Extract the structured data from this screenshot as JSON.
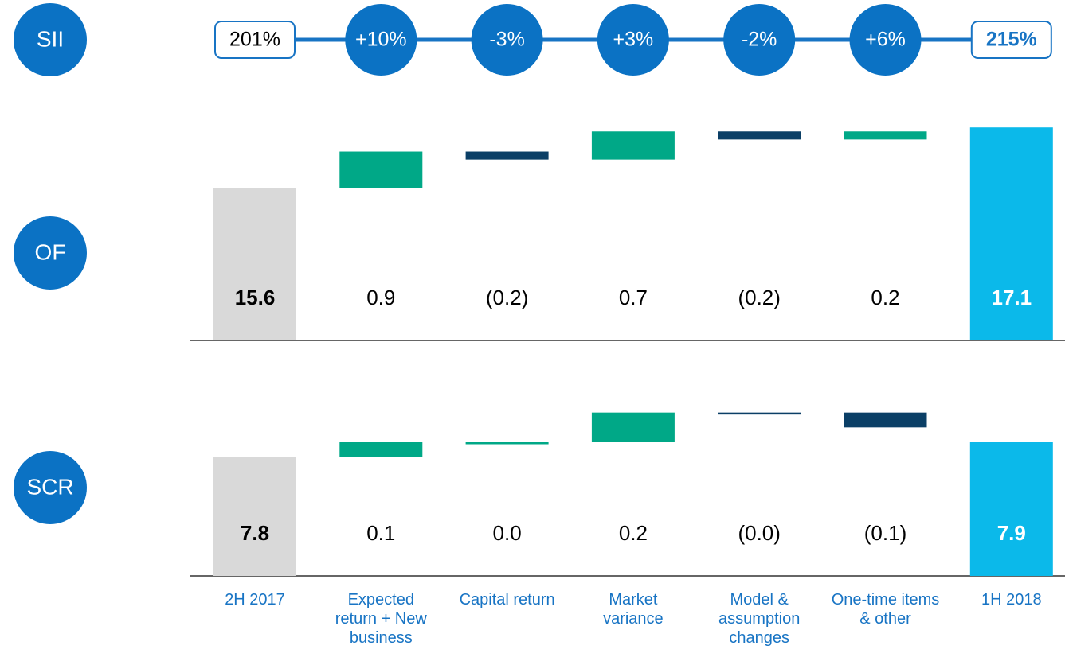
{
  "chart_data": [
    {
      "type": "steps",
      "label": "SII",
      "values": [
        201,
        10,
        -3,
        3,
        -2,
        6,
        215
      ],
      "value_labels": [
        "201%",
        "+10%",
        "-3%",
        "+3%",
        "-2%",
        "+6%",
        "215%"
      ],
      "measure": [
        "absolute",
        "relative",
        "relative",
        "relative",
        "relative",
        "relative",
        "total"
      ],
      "color": "#0b72c4"
    },
    {
      "type": "waterfall",
      "label": "OF",
      "values": [
        15.6,
        0.9,
        -0.2,
        0.7,
        -0.2,
        0.2,
        17.1
      ],
      "value_labels": [
        "15.6",
        "0.9",
        "(0.2)",
        "0.7",
        "(0.2)",
        "0.2",
        "17.1"
      ],
      "measure": [
        "absolute",
        "relative",
        "relative",
        "relative",
        "relative",
        "relative",
        "total"
      ],
      "colors": [
        "#d9d9d9",
        "#00a887",
        "#0b3f66",
        "#00a887",
        "#0b3f66",
        "#00a887",
        "#0bb9ea"
      ],
      "ylim": [
        11.8,
        17.5
      ]
    },
    {
      "type": "waterfall",
      "label": "SCR",
      "categories": [
        "2H 2017",
        "Expected return + New business",
        "Capital return",
        "Market variance",
        "Model & assumption changes",
        "One-time items & other",
        "1H 2018"
      ],
      "values": [
        7.8,
        0.1,
        0.0,
        0.2,
        -0.0,
        -0.1,
        7.9
      ],
      "value_labels": [
        "7.8",
        "0.1",
        "0.0",
        "0.2",
        "(0.0)",
        "(0.1)",
        "7.9"
      ],
      "measure": [
        "absolute",
        "relative",
        "relative",
        "relative",
        "relative",
        "relative",
        "total"
      ],
      "colors": [
        "#d9d9d9",
        "#00a887",
        "#00a887",
        "#00a887",
        "#0b3f66",
        "#0b3f66",
        "#0bb9ea"
      ],
      "ylim": [
        7.0,
        8.2
      ]
    }
  ]
}
